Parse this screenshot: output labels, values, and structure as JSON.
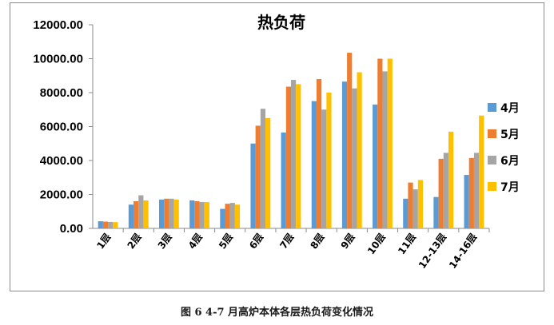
{
  "chart_data": {
    "type": "bar",
    "title": "热负荷",
    "categories": [
      "1层",
      "2层",
      "3层",
      "4层",
      "5层",
      "6层",
      "7层",
      "8层",
      "9层",
      "10层",
      "11层",
      "12-13层",
      "14-16层"
    ],
    "series": [
      {
        "name": "4月",
        "color": "#5b9bd5",
        "values": [
          420,
          1400,
          1700,
          1650,
          1150,
          5000,
          5650,
          7500,
          8650,
          7300,
          1750,
          1850,
          3150
        ]
      },
      {
        "name": "5月",
        "color": "#ed7d31",
        "values": [
          400,
          1600,
          1750,
          1600,
          1450,
          6050,
          8350,
          8800,
          10350,
          10000,
          2700,
          4100,
          4150
        ]
      },
      {
        "name": "6月",
        "color": "#a5a5a5",
        "values": [
          380,
          1950,
          1750,
          1550,
          1500,
          7050,
          8750,
          7000,
          8250,
          9250,
          2300,
          4450,
          4450
        ]
      },
      {
        "name": "7月",
        "color": "#ffc000",
        "values": [
          370,
          1650,
          1700,
          1550,
          1400,
          6500,
          8500,
          8000,
          9200,
          10000,
          2850,
          5700,
          6650
        ]
      }
    ],
    "ylim": [
      0,
      12000
    ],
    "yticks": [
      "0.00",
      "2000.00",
      "4000.00",
      "6000.00",
      "8000.00",
      "10000.00",
      "12000.00"
    ],
    "legend": "right",
    "grid": false,
    "xlabel": "",
    "ylabel": ""
  },
  "caption": "图 6    4-7 月高炉本体各层热负荷变化情况"
}
